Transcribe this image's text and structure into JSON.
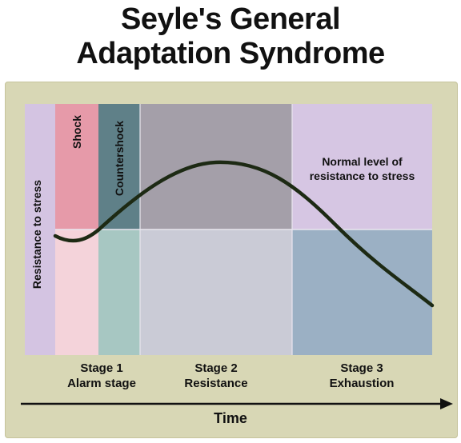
{
  "title_line1": "Seyle's General",
  "title_line2": "Adaptation Syndrome",
  "y_axis_label": "Resistance to stress",
  "phases": {
    "shock": "Shock",
    "countershock": "Countershock"
  },
  "normal_level_line1": "Normal level of",
  "normal_level_line2": "resistance to stress",
  "stages": [
    {
      "number": "Stage 1",
      "name": "Alarm stage"
    },
    {
      "number": "Stage 2",
      "name": "Resistance"
    },
    {
      "number": "Stage 3",
      "name": "Exhaustion"
    }
  ],
  "x_axis_label": "Time",
  "colors": {
    "background": "#d8d7b5",
    "yaxis_band": "#d4c4e2",
    "shock_top": "#e69aa9",
    "shock_bottom": "#f4d3da",
    "countershock_top": "#5f8088",
    "countershock_bottom": "#a7c7c2",
    "resistance_top": "#a49fa9",
    "resistance_bottom": "#cacbd6",
    "exhaustion_top": "#d6c6e3",
    "exhaustion_bottom": "#9bb0c4",
    "curve": "#1d2a14"
  }
}
